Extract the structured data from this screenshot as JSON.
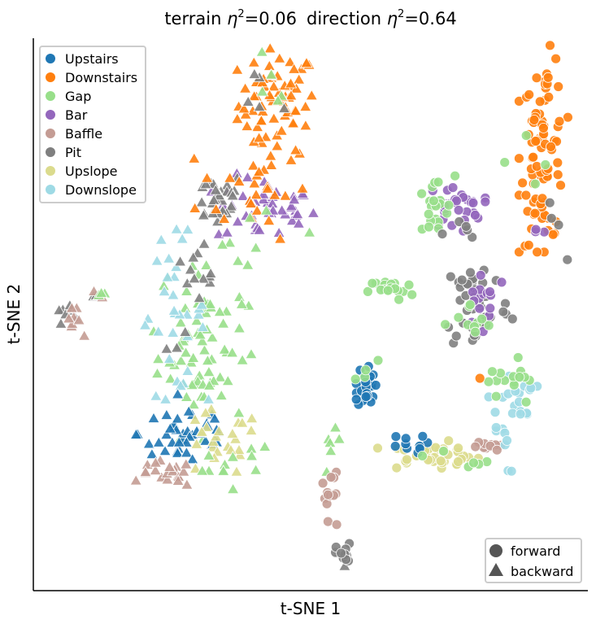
{
  "chart_data": {
    "type": "scatter",
    "title_parts": {
      "a_pre": "terrain ",
      "a_sym": "η",
      "a_exp": "2",
      "a_val": "=0.06",
      "b_pre": "direction ",
      "b_sym": "η",
      "b_exp": "2",
      "b_val": "=0.64"
    },
    "xlabel": "t-SNE 1",
    "ylabel": "t-SNE 2",
    "xlim": [
      0,
      100
    ],
    "ylim": [
      0,
      100
    ],
    "legend_terrain": [
      {
        "name": "Upstairs",
        "color": "#1f77b4"
      },
      {
        "name": "Downstairs",
        "color": "#ff7f0e"
      },
      {
        "name": "Gap",
        "color": "#98df8a"
      },
      {
        "name": "Bar",
        "color": "#9467bd"
      },
      {
        "name": "Baffle",
        "color": "#c49c94"
      },
      {
        "name": "Pit",
        "color": "#7f7f7f"
      },
      {
        "name": "Upslope",
        "color": "#dbdb8d"
      },
      {
        "name": "Downslope",
        "color": "#9edae5"
      }
    ],
    "legend_direction": [
      {
        "name": "forward",
        "marker": "circle"
      },
      {
        "name": "backward",
        "marker": "triangle"
      }
    ],
    "clusters": [
      {
        "terrain": "Downstairs",
        "direction": "backward",
        "cx": 44.0,
        "cy": 88.0,
        "sx": 3.5,
        "sy": 5.0,
        "n": 70
      },
      {
        "terrain": "Gap",
        "direction": "backward",
        "cx": 42.5,
        "cy": 92.0,
        "sx": 2.0,
        "sy": 2.5,
        "n": 5
      },
      {
        "terrain": "Pit",
        "direction": "backward",
        "cx": 41.0,
        "cy": 89.0,
        "sx": 2.0,
        "sy": 3.0,
        "n": 5
      },
      {
        "terrain": "Bar",
        "direction": "backward",
        "cx": 42.0,
        "cy": 69.0,
        "sx": 4.5,
        "sy": 3.0,
        "n": 45
      },
      {
        "terrain": "Pit",
        "direction": "backward",
        "cx": 33.0,
        "cy": 71.0,
        "sx": 2.5,
        "sy": 2.5,
        "n": 30
      },
      {
        "terrain": "Downstairs",
        "direction": "backward",
        "cx": 40.0,
        "cy": 73.0,
        "sx": 5.0,
        "sy": 4.5,
        "n": 25
      },
      {
        "terrain": "Gap",
        "direction": "backward",
        "cx": 41.0,
        "cy": 66.0,
        "sx": 4.0,
        "sy": 3.0,
        "n": 6
      },
      {
        "terrain": "Pit",
        "direction": "backward",
        "cx": 6.0,
        "cy": 50.5,
        "sx": 1.0,
        "sy": 1.0,
        "n": 8
      },
      {
        "terrain": "Baffle",
        "direction": "backward",
        "cx": 7.0,
        "cy": 48.5,
        "sx": 1.0,
        "sy": 1.2,
        "n": 8
      },
      {
        "terrain": "Pit",
        "direction": "backward",
        "cx": 11.5,
        "cy": 53.5,
        "sx": 0.8,
        "sy": 0.5,
        "n": 2
      },
      {
        "terrain": "Baffle",
        "direction": "backward",
        "cx": 12.0,
        "cy": 53.7,
        "sx": 0.6,
        "sy": 0.4,
        "n": 2
      },
      {
        "terrain": "Gap",
        "direction": "backward",
        "cx": 13.0,
        "cy": 53.8,
        "sx": 0.8,
        "sy": 0.4,
        "n": 3
      },
      {
        "terrain": "Gap",
        "direction": "backward",
        "cx": 30.5,
        "cy": 45.0,
        "sx": 4.0,
        "sy": 8.0,
        "n": 75
      },
      {
        "terrain": "Downslope",
        "direction": "backward",
        "cx": 25.0,
        "cy": 50.0,
        "sx": 3.0,
        "sy": 7.0,
        "n": 32
      },
      {
        "terrain": "Pit",
        "direction": "backward",
        "cx": 30.0,
        "cy": 53.0,
        "sx": 3.0,
        "sy": 5.0,
        "n": 15
      },
      {
        "terrain": "Upstairs",
        "direction": "backward",
        "cx": 28.0,
        "cy": 28.5,
        "sx": 4.5,
        "sy": 3.2,
        "n": 45
      },
      {
        "terrain": "Upslope",
        "direction": "backward",
        "cx": 33.0,
        "cy": 26.5,
        "sx": 4.0,
        "sy": 3.0,
        "n": 25
      },
      {
        "terrain": "Baffle",
        "direction": "backward",
        "cx": 24.0,
        "cy": 21.0,
        "sx": 2.5,
        "sy": 1.2,
        "n": 20
      },
      {
        "terrain": "Gap",
        "direction": "backward",
        "cx": 35.0,
        "cy": 22.5,
        "sx": 4.5,
        "sy": 2.5,
        "n": 12
      },
      {
        "terrain": "Gap",
        "direction": "backward",
        "cx": 54.0,
        "cy": 24.0,
        "sx": 1.5,
        "sy": 2.5,
        "n": 6
      },
      {
        "terrain": "Pit",
        "direction": "backward",
        "cx": 55.5,
        "cy": 5.5,
        "sx": 0.7,
        "sy": 1.0,
        "n": 2
      },
      {
        "terrain": "Downstairs",
        "direction": "forward",
        "cx": 92.0,
        "cy": 80.0,
        "sx": 2.0,
        "sy": 8.5,
        "n": 85
      },
      {
        "terrain": "Gap",
        "direction": "forward",
        "cx": 90.5,
        "cy": 77.0,
        "sx": 2.5,
        "sy": 6.0,
        "n": 4
      },
      {
        "terrain": "Pit",
        "direction": "forward",
        "cx": 93.0,
        "cy": 70.0,
        "sx": 1.5,
        "sy": 6.0,
        "n": 4
      },
      {
        "terrain": "Bar",
        "direction": "forward",
        "cx": 91.5,
        "cy": 64.5,
        "sx": 1.0,
        "sy": 0.4,
        "n": 3
      },
      {
        "terrain": "Bar",
        "direction": "forward",
        "cx": 76.0,
        "cy": 69.5,
        "sx": 2.5,
        "sy": 2.0,
        "n": 30
      },
      {
        "terrain": "Gap",
        "direction": "forward",
        "cx": 72.0,
        "cy": 69.0,
        "sx": 2.0,
        "sy": 3.0,
        "n": 20
      },
      {
        "terrain": "Pit",
        "direction": "forward",
        "cx": 77.5,
        "cy": 64.5,
        "sx": 1.8,
        "sy": 1.5,
        "n": 5
      },
      {
        "terrain": "Gap",
        "direction": "forward",
        "cx": 64.5,
        "cy": 54.5,
        "sx": 2.0,
        "sy": 1.0,
        "n": 20
      },
      {
        "terrain": "Pit",
        "direction": "forward",
        "cx": 80.0,
        "cy": 52.0,
        "sx": 3.0,
        "sy": 4.5,
        "n": 45
      },
      {
        "terrain": "Bar",
        "direction": "forward",
        "cx": 81.5,
        "cy": 53.5,
        "sx": 2.0,
        "sy": 3.0,
        "n": 15
      },
      {
        "terrain": "Gap",
        "direction": "forward",
        "cx": 79.0,
        "cy": 48.0,
        "sx": 2.5,
        "sy": 2.0,
        "n": 10
      },
      {
        "terrain": "Upstairs",
        "direction": "forward",
        "cx": 60.0,
        "cy": 37.0,
        "sx": 0.8,
        "sy": 2.0,
        "n": 30
      },
      {
        "terrain": "Gap",
        "direction": "forward",
        "cx": 60.0,
        "cy": 40.5,
        "sx": 1.0,
        "sy": 1.5,
        "n": 4
      },
      {
        "terrain": "Upslope",
        "direction": "forward",
        "cx": 72.0,
        "cy": 24.5,
        "sx": 4.5,
        "sy": 1.2,
        "n": 40
      },
      {
        "terrain": "Upstairs",
        "direction": "forward",
        "cx": 67.0,
        "cy": 26.5,
        "sx": 2.0,
        "sy": 0.8,
        "n": 10
      },
      {
        "terrain": "Baffle",
        "direction": "forward",
        "cx": 81.0,
        "cy": 26.0,
        "sx": 1.5,
        "sy": 0.8,
        "n": 10
      },
      {
        "terrain": "Downslope",
        "direction": "forward",
        "cx": 84.0,
        "cy": 29.0,
        "sx": 1.5,
        "sy": 4.0,
        "n": 12
      },
      {
        "terrain": "Downslope",
        "direction": "forward",
        "cx": 88.0,
        "cy": 35.0,
        "sx": 1.3,
        "sy": 2.0,
        "n": 15
      },
      {
        "terrain": "Gap",
        "direction": "forward",
        "cx": 86.0,
        "cy": 38.0,
        "sx": 2.0,
        "sy": 3.0,
        "n": 15
      },
      {
        "terrain": "Gap",
        "direction": "forward",
        "cx": 76.0,
        "cy": 24.0,
        "sx": 3.0,
        "sy": 1.0,
        "n": 6
      },
      {
        "terrain": "Downstairs",
        "direction": "forward",
        "cx": 80.5,
        "cy": 38.5,
        "sx": 0.2,
        "sy": 0.2,
        "n": 1
      },
      {
        "terrain": "Baffle",
        "direction": "forward",
        "cx": 53.5,
        "cy": 18.0,
        "sx": 0.8,
        "sy": 2.5,
        "n": 12
      },
      {
        "terrain": "Baffle",
        "direction": "forward",
        "cx": 54.5,
        "cy": 12.0,
        "sx": 0.2,
        "sy": 0.2,
        "n": 1
      },
      {
        "terrain": "Pit",
        "direction": "forward",
        "cx": 56.0,
        "cy": 6.5,
        "sx": 0.7,
        "sy": 1.0,
        "n": 12
      }
    ]
  }
}
